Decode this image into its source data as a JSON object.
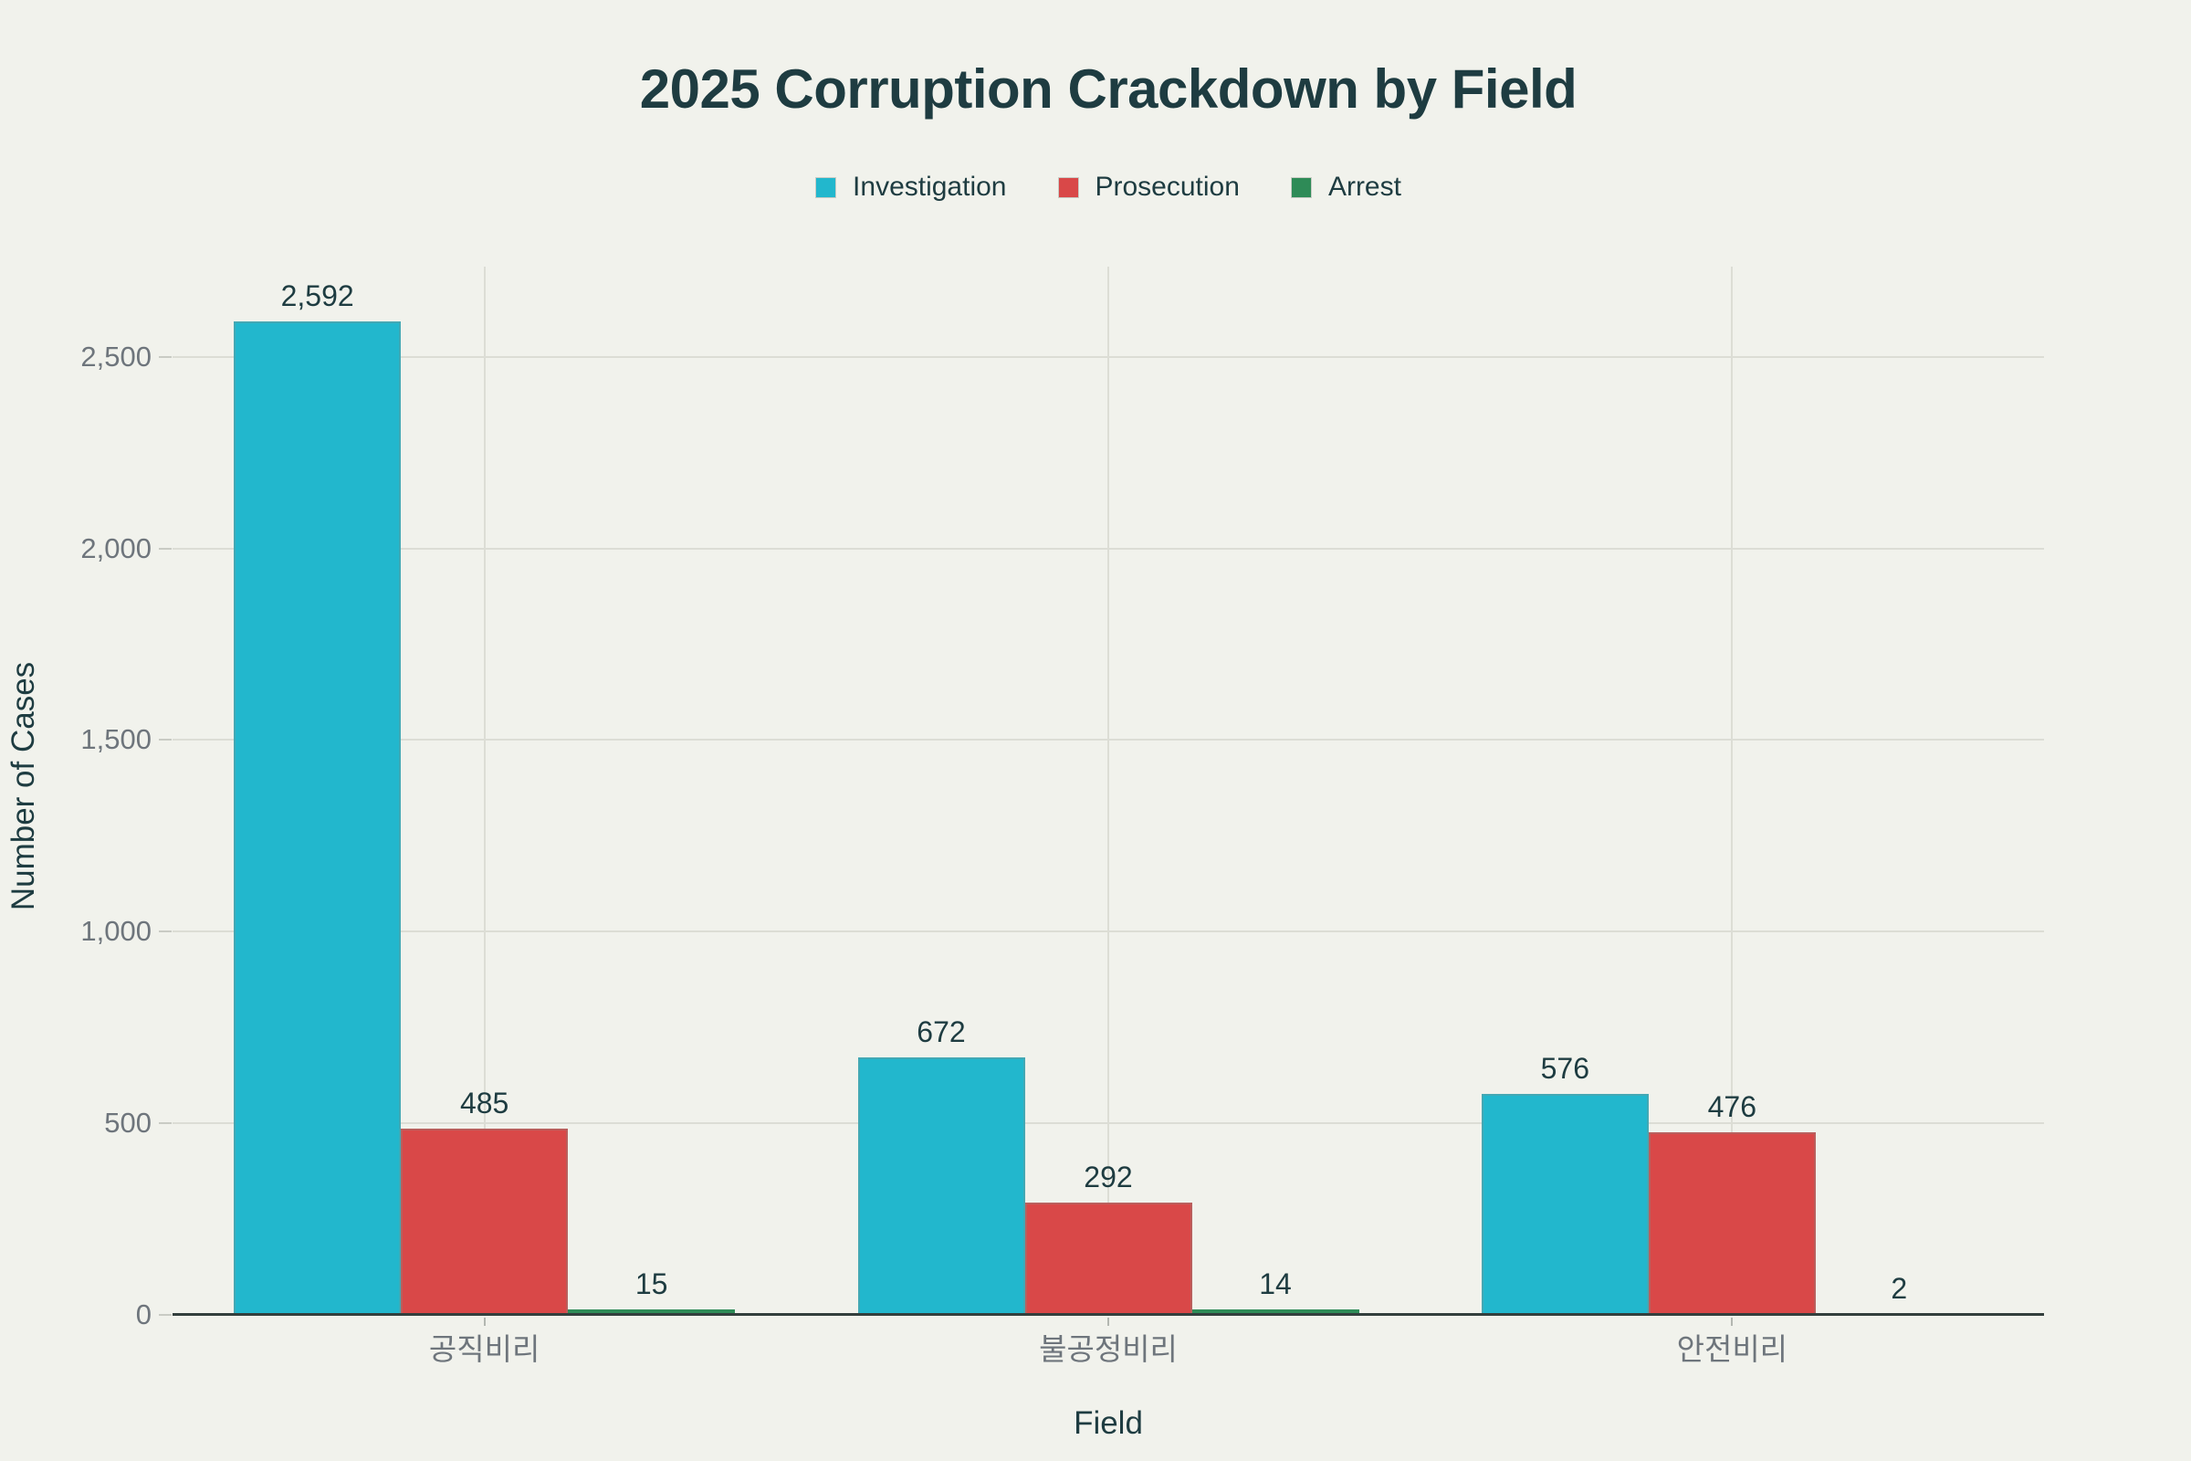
{
  "chart_data": {
    "type": "bar",
    "title": "2025 Corruption Crackdown by Field",
    "xlabel": "Field",
    "ylabel": "Number of Cases",
    "categories": [
      "공직비리",
      "불공정비리",
      "안전비리"
    ],
    "series": [
      {
        "name": "Investigation",
        "color": "#22b7cd",
        "values": [
          2592,
          672,
          576
        ],
        "labels": [
          "2,592",
          "672",
          "576"
        ]
      },
      {
        "name": "Prosecution",
        "color": "#d94848",
        "values": [
          485,
          292,
          476
        ],
        "labels": [
          "485",
          "292",
          "476"
        ]
      },
      {
        "name": "Arrest",
        "color": "#2e8b57",
        "values": [
          15,
          14,
          2
        ],
        "labels": [
          "15",
          "14",
          "2"
        ]
      }
    ],
    "yticks": [
      {
        "value": 0,
        "label": "0"
      },
      {
        "value": 500,
        "label": "500"
      },
      {
        "value": 1000,
        "label": "1,000"
      },
      {
        "value": 1500,
        "label": "1,500"
      },
      {
        "value": 2000,
        "label": "2,000"
      },
      {
        "value": 2500,
        "label": "2,500"
      }
    ],
    "ylim": [
      0,
      2735
    ],
    "grid": true,
    "legend_position": "top-center",
    "colors": {
      "background": "#f1f2ec",
      "title_text": "#1e3c41",
      "value_label_text": "#1e3c41",
      "tick_text": "#6e757c",
      "gridline": "#dcddd5",
      "axis_line": "#333f3d",
      "investigation": "#22b7cd",
      "prosecution": "#d94848",
      "arrest": "#2e8b57"
    }
  }
}
